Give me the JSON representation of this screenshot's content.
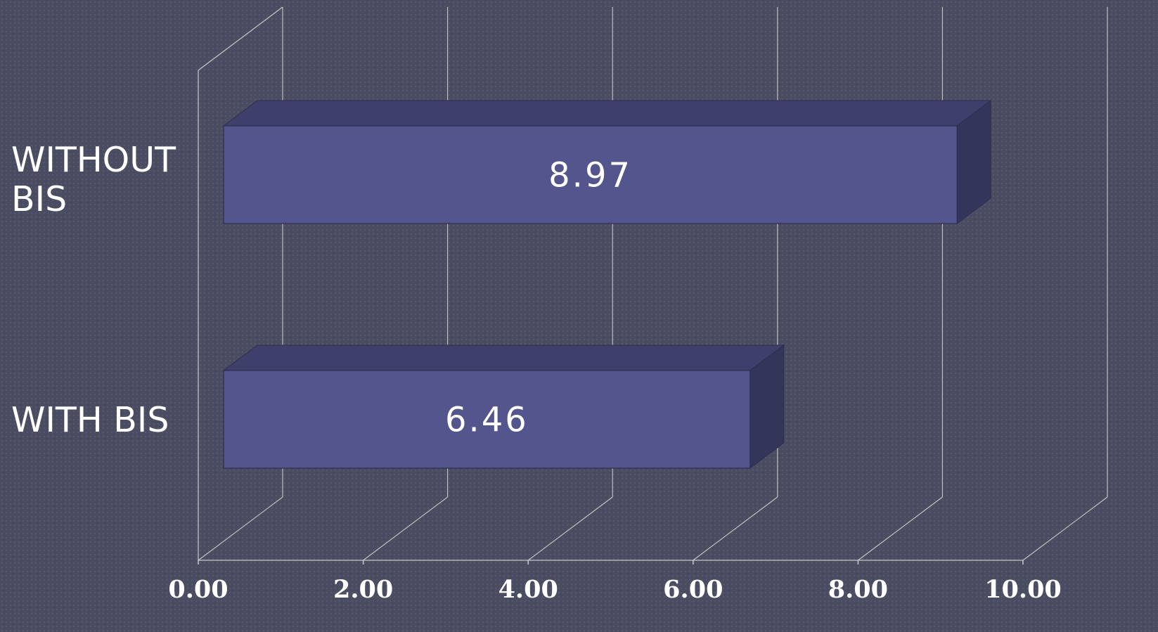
{
  "chart_data": {
    "type": "bar",
    "orientation": "horizontal",
    "style": "3d",
    "categories": [
      "WITHOUT\nBIS",
      "WITH BIS"
    ],
    "values": [
      8.97,
      6.46
    ],
    "value_labels": [
      "8.97",
      "6.46"
    ],
    "xlim": [
      0,
      10
    ],
    "x_ticks": [
      "0.00",
      "2.00",
      "4.00",
      "6.00",
      "8.00",
      "10.00"
    ],
    "title": "",
    "xlabel": "",
    "ylabel": "",
    "grid": true,
    "legend": "none",
    "colors": {
      "background": "#4a4d61",
      "bar_front": "#54558c",
      "bar_top": "#3e3f6b",
      "bar_side": "#34355a",
      "gridline": "#c8c8c8",
      "text": "#ffffff"
    }
  }
}
